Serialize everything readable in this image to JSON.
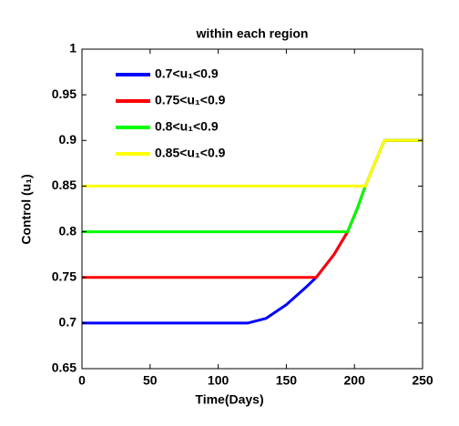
{
  "chart_data": {
    "type": "line",
    "title": "within each region",
    "xlabel": "Time(Days)",
    "ylabel": "Control (u₁)",
    "x": [
      0,
      122,
      135,
      150,
      165,
      172,
      185,
      195,
      202,
      208,
      215,
      222,
      250
    ],
    "series": [
      {
        "name": "0.7<u₁<0.9",
        "color": "#0000ff",
        "values": [
          0.7,
          0.7,
          0.705,
          0.72,
          0.74,
          0.75,
          0.775,
          0.8,
          0.825,
          0.85,
          0.875,
          0.9,
          0.9
        ]
      },
      {
        "name": "0.75<u₁<0.9",
        "color": "#ff0000",
        "values": [
          0.75,
          0.75,
          0.75,
          0.75,
          0.75,
          0.75,
          0.775,
          0.8,
          0.825,
          0.85,
          0.875,
          0.9,
          0.9
        ]
      },
      {
        "name": "0.8<u₁<0.9",
        "color": "#00ff00",
        "values": [
          0.8,
          0.8,
          0.8,
          0.8,
          0.8,
          0.8,
          0.8,
          0.8,
          0.825,
          0.85,
          0.875,
          0.9,
          0.9
        ]
      },
      {
        "name": "0.85<u₁<0.9",
        "color": "#ffff00",
        "values": [
          0.85,
          0.85,
          0.85,
          0.85,
          0.85,
          0.85,
          0.85,
          0.85,
          0.85,
          0.85,
          0.875,
          0.9,
          0.9
        ]
      }
    ],
    "xlim": [
      0,
      250
    ],
    "xticks": [
      0,
      50,
      100,
      150,
      200,
      250
    ],
    "ylim": [
      0.65,
      1
    ],
    "yticks": [
      0.65,
      0.7,
      0.75,
      0.8,
      0.85,
      0.9,
      0.95,
      1
    ],
    "legend": "upper-left",
    "grid": false
  }
}
